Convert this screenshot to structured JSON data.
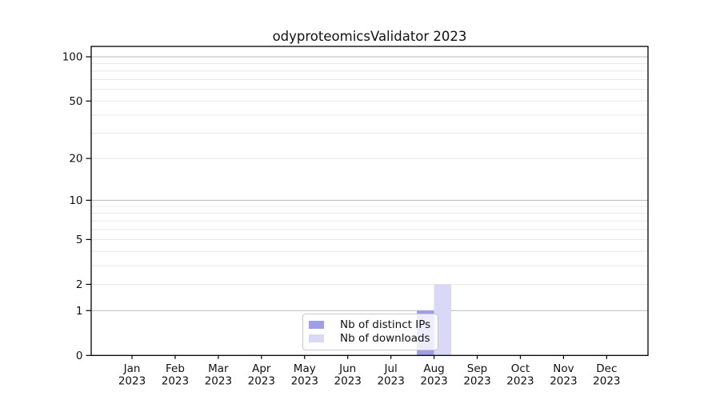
{
  "title": "odyproteomicsValidator 2023",
  "chart_data": {
    "type": "bar",
    "title": "odyproteomicsValidator 2023",
    "xlabel": "",
    "ylabel": "",
    "categories": [
      "Jan",
      "Feb",
      "Mar",
      "Apr",
      "May",
      "Jun",
      "Jul",
      "Aug",
      "Sep",
      "Oct",
      "Nov",
      "Dec"
    ],
    "category_year": "2023",
    "series": [
      {
        "name": "Nb of distinct IPs",
        "color": "#9f9fe7",
        "values": [
          0,
          0,
          0,
          0,
          0,
          0,
          0,
          1,
          0,
          0,
          0,
          0
        ]
      },
      {
        "name": "Nb of downloads",
        "color": "#d9d9f7",
        "values": [
          0,
          0,
          0,
          0,
          0,
          0,
          0,
          2,
          0,
          0,
          0,
          0
        ]
      }
    ],
    "yscale": "log1p",
    "ylim": [
      0,
      117
    ],
    "yticks": [
      0,
      1,
      2,
      5,
      10,
      20,
      50,
      100
    ],
    "major_gridlines": [
      1,
      10,
      100
    ],
    "minor_gridlines": [
      2,
      3,
      4,
      5,
      6,
      7,
      8,
      9,
      20,
      30,
      40,
      50,
      60,
      70,
      80,
      90
    ],
    "grid": true,
    "legend_position": "lower center",
    "colors": {
      "major_grid": "#b9b9b9",
      "minor_grid": "#e7e7e7",
      "axis": "#000000",
      "text": "#111111"
    }
  }
}
